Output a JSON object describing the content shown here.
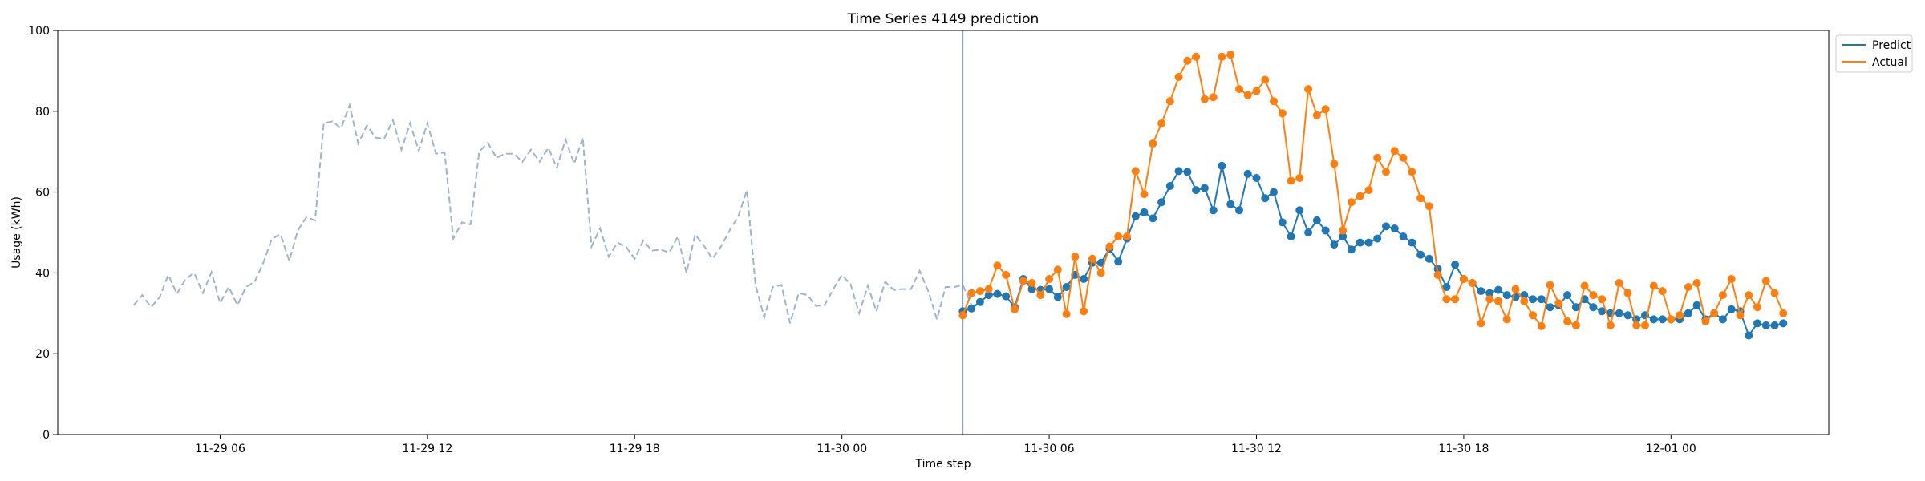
{
  "chart_data": {
    "type": "line",
    "title": "Time Series 4149 prediction",
    "xlabel": "Time step",
    "ylabel": "Usage (kWh)",
    "ylim": [
      0,
      100
    ],
    "yticks": [
      0,
      20,
      40,
      60,
      80,
      100
    ],
    "x_unit": "time",
    "xlim": [
      "2023-11-29 01:18",
      "2023-12-01 04:34"
    ],
    "xticks": [
      {
        "t": "2023-11-29 06:00",
        "label": "11-29 06"
      },
      {
        "t": "2023-11-29 12:00",
        "label": "11-29 12"
      },
      {
        "t": "2023-11-29 18:00",
        "label": "11-29 18"
      },
      {
        "t": "2023-11-30 00:00",
        "label": "11-30 00"
      },
      {
        "t": "2023-11-30 06:00",
        "label": "11-30 06"
      },
      {
        "t": "2023-11-30 12:00",
        "label": "11-30 12"
      },
      {
        "t": "2023-11-30 18:00",
        "label": "11-30 18"
      },
      {
        "t": "2023-12-01 00:00",
        "label": "12-01 00"
      }
    ],
    "grid": false,
    "legend_position": "upper-right-outside",
    "split_line": {
      "t": "2023-11-30 03:30",
      "color": "#8c9ecb"
    },
    "history": {
      "start": "2023-11-29 03:30",
      "step_minutes": 15,
      "color": "#9eb3cd",
      "values": [
        32.0,
        34.5,
        31.5,
        34.0,
        39.5,
        34.8,
        38.5,
        40.0,
        35.0,
        40.2,
        32.5,
        36.5,
        32.0,
        36.5,
        37.8,
        42.5,
        48.5,
        49.5,
        43.0,
        50.5,
        53.8,
        53.0,
        77.0,
        77.5,
        75.8,
        81.5,
        72.0,
        76.5,
        73.5,
        73.2,
        77.8,
        70.5,
        77.0,
        70.2,
        77.0,
        69.5,
        69.8,
        48.5,
        52.5,
        52.0,
        70.0,
        72.2,
        68.5,
        69.5,
        69.5,
        67.5,
        70.5,
        67.5,
        71.0,
        66.0,
        73.0,
        67.0,
        73.5,
        46.5,
        51.0,
        44.0,
        47.5,
        46.5,
        43.5,
        48.0,
        45.5,
        45.8,
        45.0,
        49.0,
        40.0,
        49.5,
        46.8,
        43.5,
        46.5,
        50.5,
        54.0,
        60.5,
        37.0,
        29.0,
        36.5,
        37.0,
        27.5,
        35.0,
        34.5,
        31.8,
        32.0,
        36.0,
        39.5,
        37.2,
        30.0,
        36.8,
        30.5,
        37.8,
        35.8,
        36.0,
        36.0,
        40.5,
        35.5,
        28.5,
        36.5,
        36.5,
        37.0,
        32.0
      ]
    },
    "forecast_start": "2023-11-30 03:30",
    "step_minutes": 15,
    "series": [
      {
        "name": "Predict",
        "color": "#1f77b4",
        "values": [
          30.5,
          31.2,
          32.8,
          34.5,
          34.8,
          34.2,
          31.5,
          38.5,
          36.0,
          35.8,
          36.0,
          34.0,
          36.5,
          39.5,
          38.5,
          42.5,
          42.5,
          46.0,
          42.8,
          48.5,
          54.0,
          55.0,
          53.5,
          57.5,
          61.5,
          65.2,
          65.0,
          60.5,
          61.0,
          55.5,
          66.5,
          57.0,
          55.5,
          64.5,
          63.5,
          58.5,
          60.0,
          52.5,
          49.0,
          55.5,
          50.0,
          53.0,
          50.5,
          47.0,
          49.0,
          45.8,
          47.5,
          47.5,
          48.5,
          51.5,
          51.0,
          49.0,
          47.5,
          44.5,
          43.5,
          41.0,
          36.5,
          42.0,
          38.5,
          37.5,
          35.5,
          35.0,
          35.8,
          34.5,
          34.0,
          34.5,
          33.5,
          33.5,
          31.5,
          32.0,
          34.5,
          31.5,
          33.5,
          31.5,
          30.5,
          30.0,
          30.0,
          29.5,
          28.5,
          29.5,
          28.5,
          28.5,
          28.5,
          28.5,
          30.0,
          32.0,
          28.5,
          30.0,
          28.5,
          31.0,
          30.5,
          24.5,
          27.5,
          27.0,
          27.0,
          27.5
        ]
      },
      {
        "name": "Actual",
        "color": "#ff7f0e",
        "values": [
          29.5,
          35.0,
          35.5,
          36.0,
          41.8,
          39.5,
          31.0,
          38.0,
          37.5,
          34.5,
          38.5,
          40.8,
          29.8,
          44.0,
          30.5,
          43.5,
          40.0,
          46.5,
          49.0,
          49.0,
          65.2,
          59.5,
          72.0,
          77.0,
          82.5,
          88.5,
          92.5,
          93.5,
          83.0,
          83.5,
          93.5,
          94.0,
          85.5,
          84.0,
          85.0,
          87.8,
          82.5,
          79.5,
          62.8,
          63.5,
          85.5,
          79.0,
          80.5,
          67.0,
          50.5,
          57.5,
          59.0,
          60.5,
          68.5,
          65.0,
          70.2,
          68.5,
          65.0,
          58.5,
          56.5,
          39.5,
          33.5,
          33.5,
          38.5,
          37.5,
          27.5,
          33.5,
          33.0,
          28.5,
          36.0,
          33.0,
          29.5,
          26.8,
          37.0,
          32.5,
          28.0,
          27.0,
          36.8,
          34.5,
          33.5,
          27.0,
          37.5,
          35.0,
          27.0,
          27.0,
          36.8,
          35.5,
          28.5,
          29.5,
          36.5,
          37.5,
          28.0,
          30.0,
          34.5,
          38.5,
          29.5,
          34.5,
          31.5,
          38.0,
          35.0,
          30.0
        ]
      }
    ]
  }
}
